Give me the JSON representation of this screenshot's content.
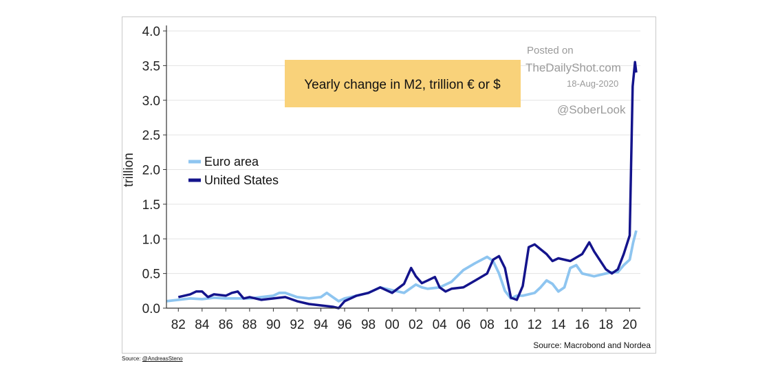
{
  "chart_data": {
    "type": "line",
    "title": "Yearly change in M2, trillion € or $",
    "ylabel": "trillion",
    "xlabel": "",
    "ylim": [
      0,
      4.0
    ],
    "xlim": [
      1981,
      2020.9
    ],
    "yticks": [
      0.0,
      0.5,
      1.0,
      1.5,
      2.0,
      2.5,
      3.0,
      3.5,
      4.0
    ],
    "ytick_labels": [
      "0.0",
      "0.5",
      "1.0",
      "1.5",
      "2.0",
      "2.5",
      "3.0",
      "3.5",
      "4.0"
    ],
    "xticks": [
      1982,
      1984,
      1986,
      1988,
      1990,
      1992,
      1994,
      1996,
      1998,
      2000,
      2002,
      2004,
      2006,
      2008,
      2010,
      2012,
      2014,
      2016,
      2018,
      2020
    ],
    "xtick_labels": [
      "82",
      "84",
      "86",
      "88",
      "90",
      "92",
      "94",
      "96",
      "98",
      "00",
      "02",
      "04",
      "06",
      "08",
      "10",
      "12",
      "14",
      "16",
      "18",
      "20"
    ],
    "grid": "horizontal",
    "legend_position": "left",
    "source": "Source: Macrobond and Nordea",
    "series": [
      {
        "name": "Euro area",
        "color": "#8ec5f0",
        "points": [
          [
            1981.0,
            0.1
          ],
          [
            1982.0,
            0.12
          ],
          [
            1983.0,
            0.14
          ],
          [
            1984.0,
            0.13
          ],
          [
            1985.0,
            0.15
          ],
          [
            1986.0,
            0.14
          ],
          [
            1987.0,
            0.14
          ],
          [
            1988.0,
            0.14
          ],
          [
            1989.0,
            0.16
          ],
          [
            1990.0,
            0.18
          ],
          [
            1990.5,
            0.22
          ],
          [
            1991.0,
            0.22
          ],
          [
            1992.0,
            0.16
          ],
          [
            1993.0,
            0.14
          ],
          [
            1994.0,
            0.16
          ],
          [
            1994.5,
            0.22
          ],
          [
            1995.0,
            0.16
          ],
          [
            1995.5,
            0.1
          ],
          [
            1996.0,
            0.14
          ],
          [
            1997.0,
            0.18
          ],
          [
            1998.0,
            0.22
          ],
          [
            1998.5,
            0.26
          ],
          [
            1999.0,
            0.3
          ],
          [
            2000.0,
            0.26
          ],
          [
            2001.0,
            0.22
          ],
          [
            2002.0,
            0.34
          ],
          [
            2002.5,
            0.3
          ],
          [
            2003.0,
            0.28
          ],
          [
            2004.0,
            0.3
          ],
          [
            2005.0,
            0.38
          ],
          [
            2006.0,
            0.55
          ],
          [
            2007.0,
            0.65
          ],
          [
            2008.0,
            0.74
          ],
          [
            2008.5,
            0.68
          ],
          [
            2009.0,
            0.5
          ],
          [
            2009.5,
            0.25
          ],
          [
            2010.0,
            0.14
          ],
          [
            2010.5,
            0.18
          ],
          [
            2011.0,
            0.18
          ],
          [
            2012.0,
            0.22
          ],
          [
            2012.5,
            0.3
          ],
          [
            2013.0,
            0.4
          ],
          [
            2013.5,
            0.35
          ],
          [
            2014.0,
            0.24
          ],
          [
            2014.5,
            0.3
          ],
          [
            2015.0,
            0.58
          ],
          [
            2015.5,
            0.62
          ],
          [
            2016.0,
            0.5
          ],
          [
            2017.0,
            0.46
          ],
          [
            2018.0,
            0.5
          ],
          [
            2018.5,
            0.52
          ],
          [
            2019.0,
            0.52
          ],
          [
            2019.5,
            0.62
          ],
          [
            2020.0,
            0.7
          ],
          [
            2020.3,
            0.95
          ],
          [
            2020.55,
            1.12
          ]
        ]
      },
      {
        "name": "United States",
        "color": "#14148c",
        "points": [
          [
            1982.0,
            0.16
          ],
          [
            1983.0,
            0.2
          ],
          [
            1983.5,
            0.24
          ],
          [
            1984.0,
            0.24
          ],
          [
            1984.5,
            0.16
          ],
          [
            1985.0,
            0.2
          ],
          [
            1986.0,
            0.18
          ],
          [
            1986.5,
            0.22
          ],
          [
            1987.0,
            0.24
          ],
          [
            1987.5,
            0.14
          ],
          [
            1988.0,
            0.16
          ],
          [
            1989.0,
            0.12
          ],
          [
            1990.0,
            0.14
          ],
          [
            1991.0,
            0.16
          ],
          [
            1992.0,
            0.1
          ],
          [
            1993.0,
            0.06
          ],
          [
            1994.0,
            0.04
          ],
          [
            1995.0,
            0.02
          ],
          [
            1995.5,
            0.0
          ],
          [
            1996.0,
            0.1
          ],
          [
            1997.0,
            0.18
          ],
          [
            1998.0,
            0.22
          ],
          [
            1999.0,
            0.3
          ],
          [
            2000.0,
            0.22
          ],
          [
            2001.0,
            0.35
          ],
          [
            2001.6,
            0.58
          ],
          [
            2002.0,
            0.46
          ],
          [
            2002.5,
            0.36
          ],
          [
            2003.0,
            0.4
          ],
          [
            2003.6,
            0.45
          ],
          [
            2004.0,
            0.3
          ],
          [
            2004.5,
            0.24
          ],
          [
            2005.0,
            0.28
          ],
          [
            2006.0,
            0.3
          ],
          [
            2007.0,
            0.4
          ],
          [
            2008.0,
            0.5
          ],
          [
            2008.5,
            0.7
          ],
          [
            2009.0,
            0.75
          ],
          [
            2009.5,
            0.58
          ],
          [
            2010.0,
            0.15
          ],
          [
            2010.5,
            0.12
          ],
          [
            2011.0,
            0.32
          ],
          [
            2011.5,
            0.88
          ],
          [
            2012.0,
            0.92
          ],
          [
            2012.5,
            0.85
          ],
          [
            2013.0,
            0.78
          ],
          [
            2013.5,
            0.68
          ],
          [
            2014.0,
            0.72
          ],
          [
            2015.0,
            0.68
          ],
          [
            2016.0,
            0.78
          ],
          [
            2016.6,
            0.95
          ],
          [
            2017.0,
            0.82
          ],
          [
            2018.0,
            0.56
          ],
          [
            2018.5,
            0.5
          ],
          [
            2019.0,
            0.56
          ],
          [
            2019.5,
            0.78
          ],
          [
            2020.0,
            1.05
          ],
          [
            2020.25,
            3.2
          ],
          [
            2020.45,
            3.55
          ],
          [
            2020.55,
            3.4
          ]
        ]
      }
    ]
  },
  "watermark": {
    "line1": "Posted on",
    "line2": "TheDailyShot.com",
    "line3": "18-Aug-2020",
    "line4": "@SoberLook"
  },
  "footer": {
    "prefix": "Source: ",
    "handle": "@AndreasSteno"
  },
  "colors": {
    "title_box": "#f9d27a",
    "grid": "#e3e3e3",
    "axis": "#333333"
  }
}
